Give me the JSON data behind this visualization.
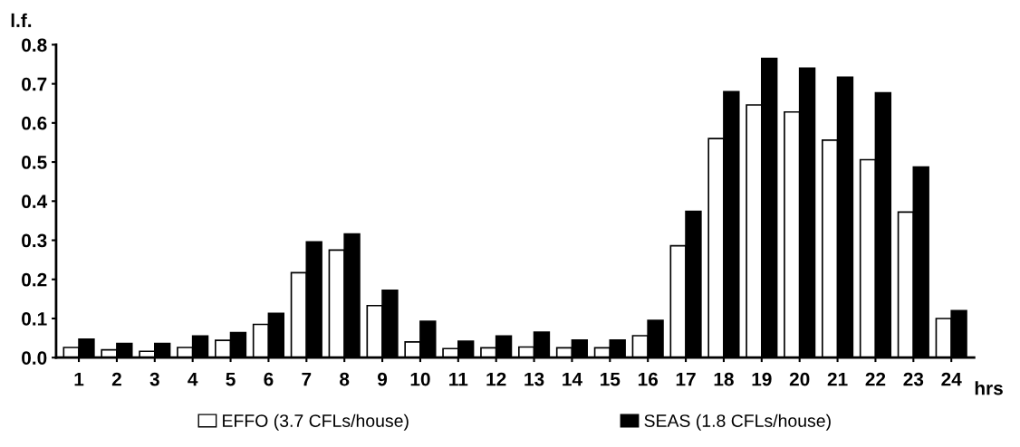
{
  "chart_data": {
    "type": "bar",
    "xlabel": "hrs",
    "ylabel": "l.f.",
    "categories": [
      "1",
      "2",
      "3",
      "4",
      "5",
      "6",
      "7",
      "8",
      "9",
      "10",
      "11",
      "12",
      "13",
      "14",
      "15",
      "16",
      "17",
      "18",
      "19",
      "20",
      "21",
      "22",
      "23",
      "24"
    ],
    "series": [
      {
        "name": "EFFO (3.7 CFLs/house)",
        "color": "#ffffff",
        "values": [
          0.026,
          0.02,
          0.016,
          0.026,
          0.044,
          0.085,
          0.217,
          0.275,
          0.133,
          0.04,
          0.023,
          0.025,
          0.027,
          0.025,
          0.025,
          0.056,
          0.286,
          0.56,
          0.646,
          0.628,
          0.556,
          0.506,
          0.372,
          0.1
        ]
      },
      {
        "name": "SEAS (1.8 CFLs/house)",
        "color": "#000000",
        "values": [
          0.047,
          0.036,
          0.036,
          0.055,
          0.064,
          0.113,
          0.296,
          0.316,
          0.172,
          0.093,
          0.042,
          0.055,
          0.065,
          0.045,
          0.045,
          0.095,
          0.374,
          0.68,
          0.765,
          0.74,
          0.717,
          0.677,
          0.487,
          0.12
        ]
      }
    ],
    "ylim": [
      0,
      0.8
    ],
    "yticks": [
      {
        "value": 0,
        "label": "0.0"
      },
      {
        "value": 0.1,
        "label": "0.1"
      },
      {
        "value": 0.2,
        "label": "0.2"
      },
      {
        "value": 0.3,
        "label": "0.3"
      },
      {
        "value": 0.4,
        "label": "0.4"
      },
      {
        "value": 0.5,
        "label": "0.5"
      },
      {
        "value": 0.6,
        "label": "0.6"
      },
      {
        "value": 0.7,
        "label": "0.7"
      },
      {
        "value": 0.8,
        "label": "0.8"
      }
    ],
    "grid": false,
    "legend": "bottom"
  }
}
